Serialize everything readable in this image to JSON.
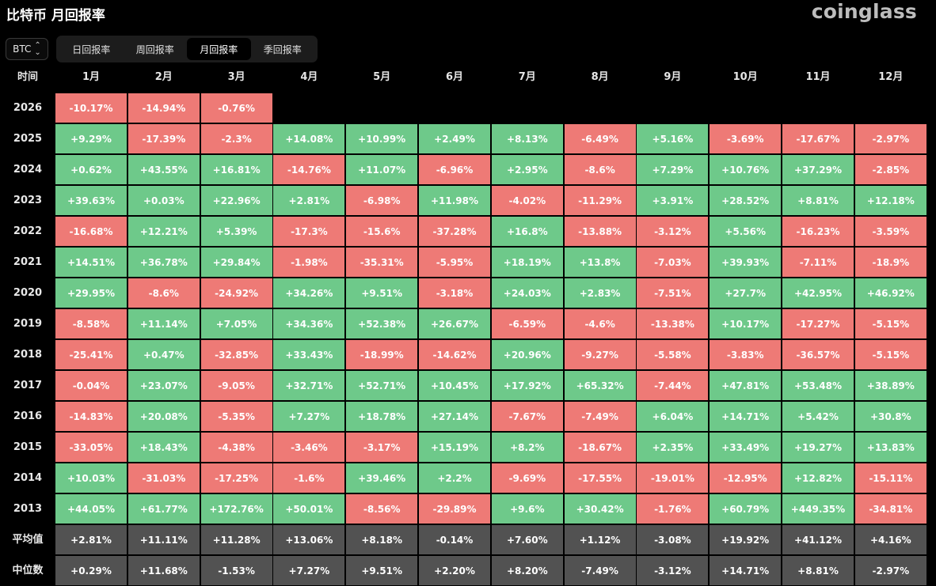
{
  "header": {
    "title": "比特币 月回报率",
    "logo": "coinglass"
  },
  "asset_selector": {
    "value": "BTC",
    "icon": "chevron-updown-icon"
  },
  "tabs": [
    {
      "label": "日回报率",
      "active": false
    },
    {
      "label": "周回报率",
      "active": false
    },
    {
      "label": "月回报率",
      "active": true
    },
    {
      "label": "季回报率",
      "active": false
    }
  ],
  "colors": {
    "positive": "#6ec98a",
    "negative": "#ee7a76",
    "stat": "#525252"
  },
  "table": {
    "corner_label": "时间",
    "columns": [
      "1月",
      "2月",
      "3月",
      "4月",
      "5月",
      "6月",
      "7月",
      "8月",
      "9月",
      "10月",
      "11月",
      "12月"
    ],
    "rows": [
      {
        "year": "2026",
        "values": [
          "-10.17%",
          "-14.94%",
          "-0.76%"
        ]
      },
      {
        "year": "2025",
        "values": [
          "+9.29%",
          "-17.39%",
          "-2.3%",
          "+14.08%",
          "+10.99%",
          "+2.49%",
          "+8.13%",
          "-6.49%",
          "+5.16%",
          "-3.69%",
          "-17.67%",
          "-2.97%"
        ]
      },
      {
        "year": "2024",
        "values": [
          "+0.62%",
          "+43.55%",
          "+16.81%",
          "-14.76%",
          "+11.07%",
          "-6.96%",
          "+2.95%",
          "-8.6%",
          "+7.29%",
          "+10.76%",
          "+37.29%",
          "-2.85%"
        ]
      },
      {
        "year": "2023",
        "values": [
          "+39.63%",
          "+0.03%",
          "+22.96%",
          "+2.81%",
          "-6.98%",
          "+11.98%",
          "-4.02%",
          "-11.29%",
          "+3.91%",
          "+28.52%",
          "+8.81%",
          "+12.18%"
        ]
      },
      {
        "year": "2022",
        "values": [
          "-16.68%",
          "+12.21%",
          "+5.39%",
          "-17.3%",
          "-15.6%",
          "-37.28%",
          "+16.8%",
          "-13.88%",
          "-3.12%",
          "+5.56%",
          "-16.23%",
          "-3.59%"
        ]
      },
      {
        "year": "2021",
        "values": [
          "+14.51%",
          "+36.78%",
          "+29.84%",
          "-1.98%",
          "-35.31%",
          "-5.95%",
          "+18.19%",
          "+13.8%",
          "-7.03%",
          "+39.93%",
          "-7.11%",
          "-18.9%"
        ]
      },
      {
        "year": "2020",
        "values": [
          "+29.95%",
          "-8.6%",
          "-24.92%",
          "+34.26%",
          "+9.51%",
          "-3.18%",
          "+24.03%",
          "+2.83%",
          "-7.51%",
          "+27.7%",
          "+42.95%",
          "+46.92%"
        ]
      },
      {
        "year": "2019",
        "values": [
          "-8.58%",
          "+11.14%",
          "+7.05%",
          "+34.36%",
          "+52.38%",
          "+26.67%",
          "-6.59%",
          "-4.6%",
          "-13.38%",
          "+10.17%",
          "-17.27%",
          "-5.15%"
        ]
      },
      {
        "year": "2018",
        "values": [
          "-25.41%",
          "+0.47%",
          "-32.85%",
          "+33.43%",
          "-18.99%",
          "-14.62%",
          "+20.96%",
          "-9.27%",
          "-5.58%",
          "-3.83%",
          "-36.57%",
          "-5.15%"
        ]
      },
      {
        "year": "2017",
        "values": [
          "-0.04%",
          "+23.07%",
          "-9.05%",
          "+32.71%",
          "+52.71%",
          "+10.45%",
          "+17.92%",
          "+65.32%",
          "-7.44%",
          "+47.81%",
          "+53.48%",
          "+38.89%"
        ]
      },
      {
        "year": "2016",
        "values": [
          "-14.83%",
          "+20.08%",
          "-5.35%",
          "+7.27%",
          "+18.78%",
          "+27.14%",
          "-7.67%",
          "-7.49%",
          "+6.04%",
          "+14.71%",
          "+5.42%",
          "+30.8%"
        ]
      },
      {
        "year": "2015",
        "values": [
          "-33.05%",
          "+18.43%",
          "-4.38%",
          "-3.46%",
          "-3.17%",
          "+15.19%",
          "+8.2%",
          "-18.67%",
          "+2.35%",
          "+33.49%",
          "+19.27%",
          "+13.83%"
        ]
      },
      {
        "year": "2014",
        "values": [
          "+10.03%",
          "-31.03%",
          "-17.25%",
          "-1.6%",
          "+39.46%",
          "+2.2%",
          "-9.69%",
          "-17.55%",
          "-19.01%",
          "-12.95%",
          "+12.82%",
          "-15.11%"
        ]
      },
      {
        "year": "2013",
        "values": [
          "+44.05%",
          "+61.77%",
          "+172.76%",
          "+50.01%",
          "-8.56%",
          "-29.89%",
          "+9.6%",
          "+30.42%",
          "-1.76%",
          "+60.79%",
          "+449.35%",
          "-34.81%"
        ]
      }
    ],
    "stats": [
      {
        "label": "平均值",
        "values": [
          "+2.81%",
          "+11.11%",
          "+11.28%",
          "+13.06%",
          "+8.18%",
          "-0.14%",
          "+7.60%",
          "+1.12%",
          "-3.08%",
          "+19.92%",
          "+41.12%",
          "+4.16%"
        ]
      },
      {
        "label": "中位数",
        "values": [
          "+0.29%",
          "+11.68%",
          "-1.53%",
          "+7.27%",
          "+9.51%",
          "+2.20%",
          "+8.20%",
          "-7.49%",
          "-3.12%",
          "+14.71%",
          "+8.81%",
          "-2.97%"
        ]
      }
    ]
  }
}
